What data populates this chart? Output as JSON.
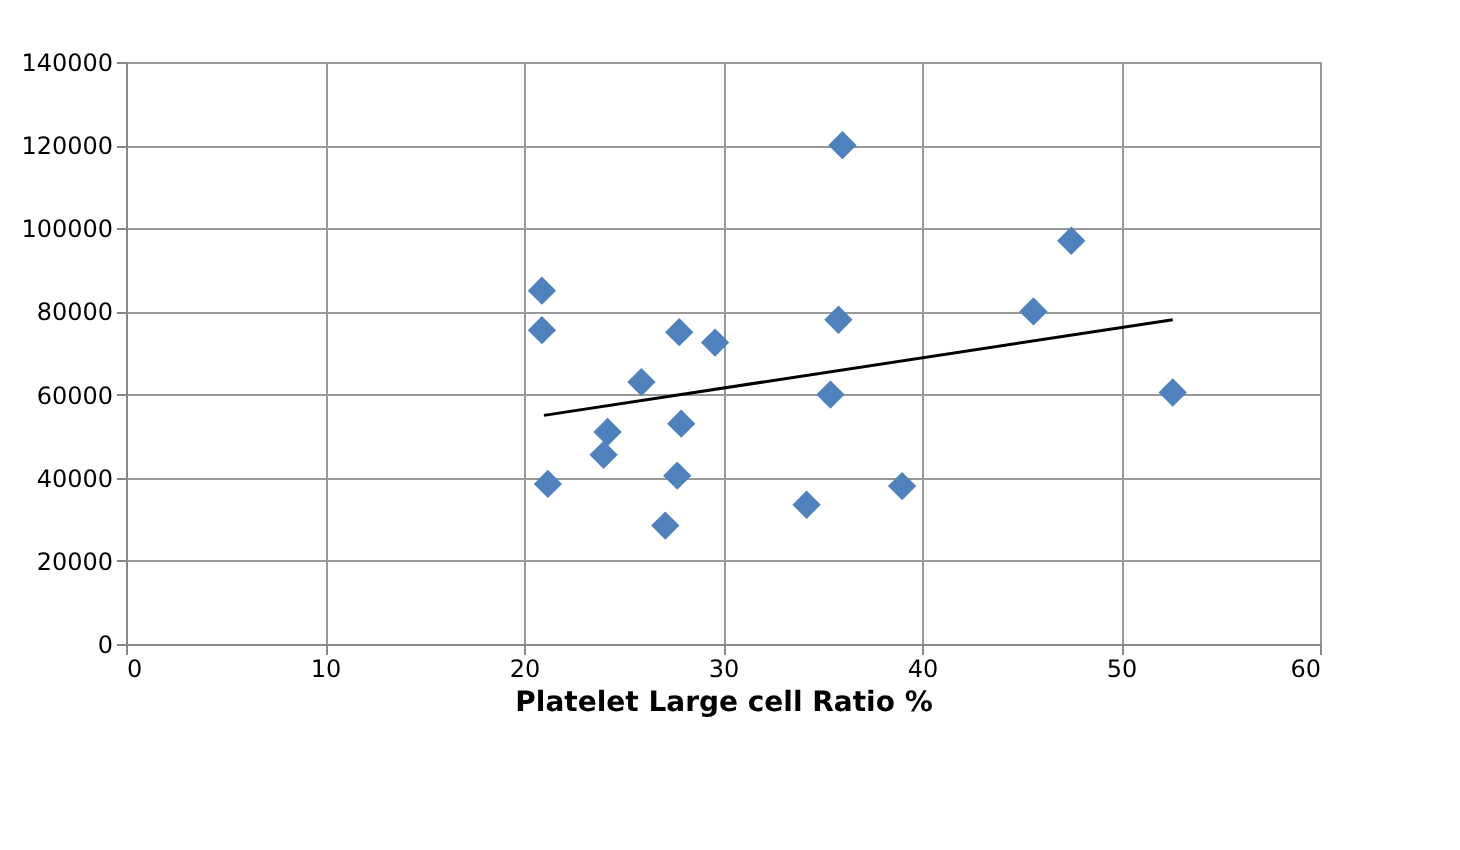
{
  "chart_data": {
    "type": "scatter",
    "xlabel": "Platelet Large cell  Ratio %",
    "xlim": [
      0,
      60
    ],
    "xticks": [
      0,
      10,
      20,
      30,
      40,
      50,
      60
    ],
    "ylim": [
      0,
      140000
    ],
    "yticks": [
      0,
      20000,
      40000,
      60000,
      80000,
      100000,
      120000,
      140000
    ],
    "grid": true,
    "marker": "diamond",
    "series": [
      {
        "color": "#4f81bd",
        "x": [
          20.9,
          20.9,
          21.2,
          24,
          24.2,
          25.9,
          27.1,
          27.7,
          27.8,
          27.9,
          29.6,
          34.2,
          35.4,
          35.8,
          36,
          39,
          45.6,
          47.5,
          52.6
        ],
        "values": [
          85000,
          75500,
          38500,
          45500,
          51000,
          63000,
          28500,
          40500,
          75000,
          53000,
          72500,
          33500,
          60000,
          78000,
          120000,
          38000,
          80000,
          97000,
          60500
        ]
      },
      {
        "type": "line",
        "marker": "none",
        "line_style": "solid",
        "color": "#000000",
        "x": [
          21,
          52.6
        ],
        "values": [
          55000,
          78000
        ]
      }
    ]
  }
}
